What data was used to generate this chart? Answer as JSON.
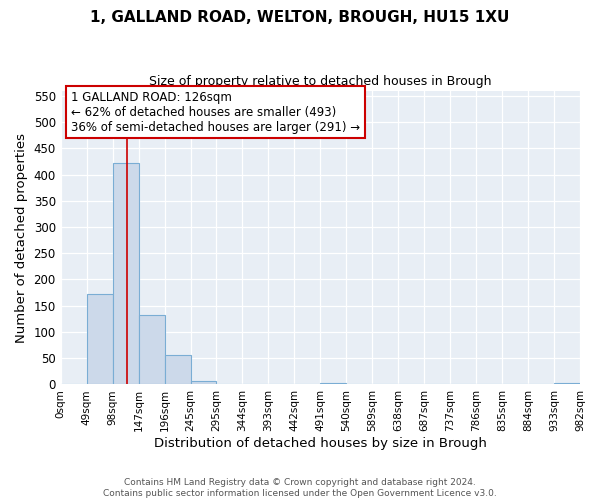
{
  "title": "1, GALLAND ROAD, WELTON, BROUGH, HU15 1XU",
  "subtitle": "Size of property relative to detached houses in Brough",
  "xlabel": "Distribution of detached houses by size in Brough",
  "ylabel": "Number of detached properties",
  "bar_edges": [
    0,
    49,
    98,
    147,
    196,
    245,
    294,
    343,
    392,
    441,
    490,
    539,
    588,
    637,
    686,
    735,
    784,
    833,
    882,
    931,
    980
  ],
  "bar_heights": [
    0,
    173,
    422,
    133,
    57,
    7,
    0,
    0,
    0,
    0,
    3,
    0,
    0,
    0,
    0,
    0,
    0,
    0,
    0,
    3
  ],
  "bar_color": "#ccd9ea",
  "bar_edge_color": "#7aadd4",
  "property_line_x": 126,
  "property_line_color": "#cc0000",
  "annotation_title": "1 GALLAND ROAD: 126sqm",
  "annotation_line1": "← 62% of detached houses are smaller (493)",
  "annotation_line2": "36% of semi-detached houses are larger (291) →",
  "annotation_box_facecolor": "#ffffff",
  "annotation_box_edgecolor": "#cc0000",
  "yticks": [
    0,
    50,
    100,
    150,
    200,
    250,
    300,
    350,
    400,
    450,
    500,
    550
  ],
  "ylim": [
    0,
    560
  ],
  "xlim": [
    0,
    980
  ],
  "tick_labels": [
    "0sqm",
    "49sqm",
    "98sqm",
    "147sqm",
    "196sqm",
    "245sqm",
    "295sqm",
    "344sqm",
    "393sqm",
    "442sqm",
    "491sqm",
    "540sqm",
    "589sqm",
    "638sqm",
    "687sqm",
    "737sqm",
    "786sqm",
    "835sqm",
    "884sqm",
    "933sqm",
    "982sqm"
  ],
  "footer_line1": "Contains HM Land Registry data © Crown copyright and database right 2024.",
  "footer_line2": "Contains public sector information licensed under the Open Government Licence v3.0.",
  "background_color": "#ffffff",
  "plot_background_color": "#e8eef5"
}
